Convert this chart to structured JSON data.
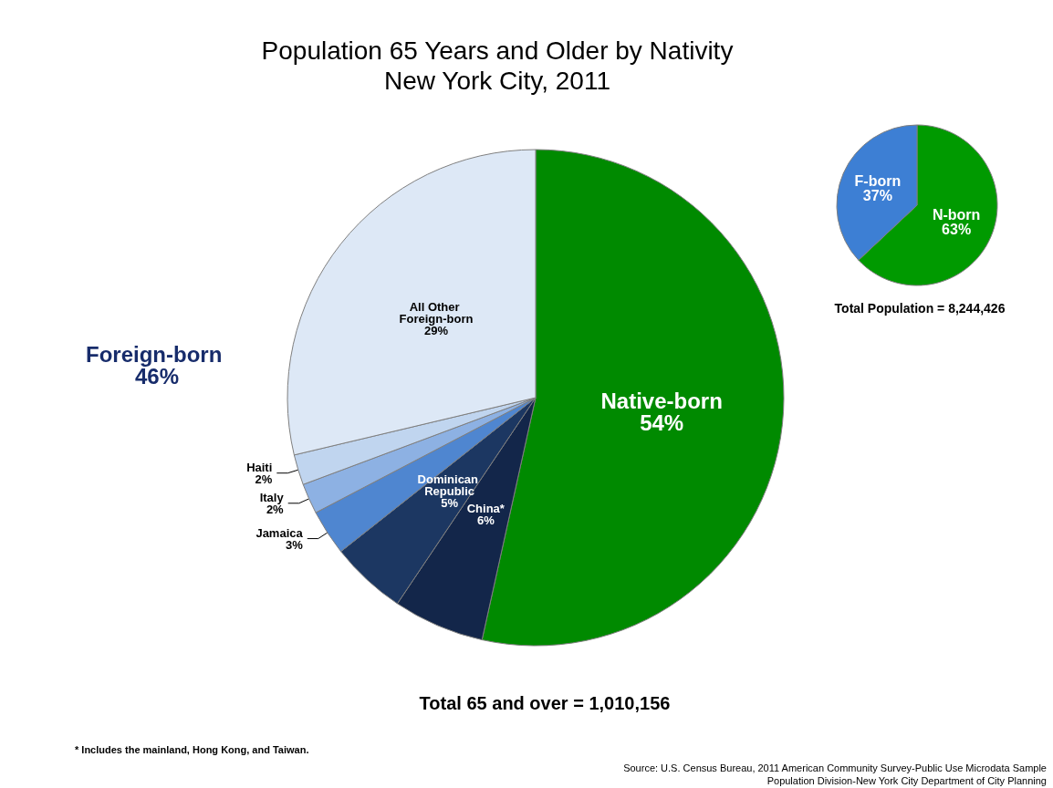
{
  "chart_data": [
    {
      "type": "pie",
      "title": "Population 65 Years and Older by Nativity",
      "subtitle": "New York City, 2011",
      "categories": [
        "Native-born",
        "China*",
        "Dominican Republic",
        "Jamaica",
        "Italy",
        "Haiti",
        "All Other Foreign-born"
      ],
      "values": [
        54,
        6,
        5,
        3,
        2,
        2,
        29
      ],
      "colors": [
        "#008a00",
        "#13264a",
        "#1c3762",
        "#4f86d0",
        "#8db1e3",
        "#c0d5ef",
        "#dde8f6"
      ],
      "value_labels": [
        "54%",
        "6%",
        "5%",
        "3%",
        "2%",
        "2%",
        "29%"
      ],
      "legend": false,
      "annotations": [
        "Foreign-born 46%",
        "Total 65 and over = 1,010,156",
        "* Includes the mainland, Hong Kong, and Taiwan.",
        "Source: U.S. Census Bureau, 2011 American Community Survey-Public Use Microdata Sample",
        "Population Division-New York City Department of City Planning"
      ]
    },
    {
      "type": "pie",
      "categories": [
        "N-born",
        "F-born"
      ],
      "values": [
        63,
        37
      ],
      "colors": [
        "#009a00",
        "#3d7fd4"
      ],
      "value_labels": [
        "63%",
        "37%"
      ],
      "legend": false,
      "annotations": [
        "Total Population = 8,244,426"
      ]
    }
  ]
}
